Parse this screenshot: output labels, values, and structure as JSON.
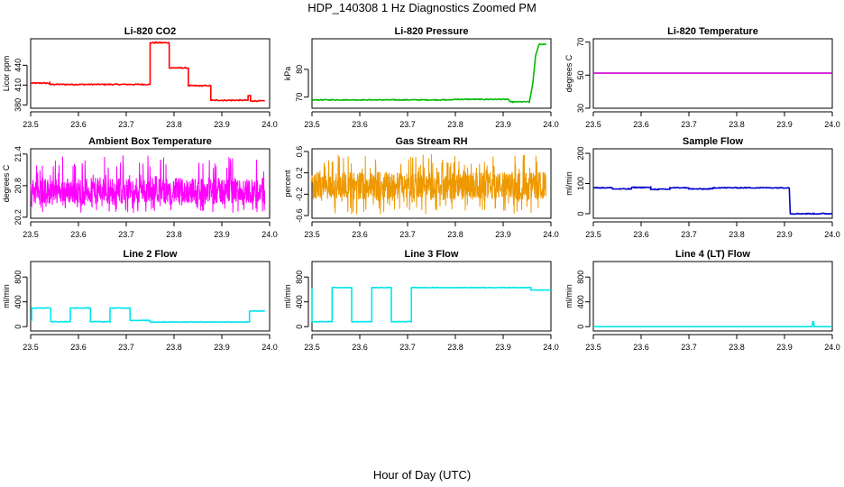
{
  "figure": {
    "title": "HDP_140308  1 Hz Diagnostics Zoomed PM",
    "xlabel": "Hour of Day (UTC)"
  },
  "chart_data": [
    {
      "type": "line",
      "title": "Li-820 CO2",
      "ylabel": "Licor ppm",
      "color": "#ff0000",
      "xlim": [
        23.5,
        24.0
      ],
      "ylim": [
        375,
        480
      ],
      "xticks": [
        23.5,
        23.6,
        23.7,
        23.8,
        23.9,
        24.0
      ],
      "xtick_labels": [
        "23.5",
        "23.6",
        "23.7",
        "23.8",
        "23.9",
        "24.0"
      ],
      "yticks": [
        380,
        410,
        440
      ],
      "ytick_labels": [
        "380",
        "410",
        "440"
      ],
      "noise": 0.8,
      "points": [
        [
          23.5,
          413
        ],
        [
          23.54,
          413
        ],
        [
          23.54,
          411
        ],
        [
          23.75,
          411
        ],
        [
          23.75,
          474
        ],
        [
          23.79,
          474
        ],
        [
          23.79,
          436
        ],
        [
          23.83,
          436
        ],
        [
          23.83,
          409
        ],
        [
          23.877,
          409
        ],
        [
          23.877,
          387
        ],
        [
          23.955,
          387
        ],
        [
          23.955,
          394
        ],
        [
          23.96,
          394
        ],
        [
          23.96,
          386
        ],
        [
          23.99,
          386
        ]
      ]
    },
    {
      "type": "line",
      "title": "Li-820 Pressure",
      "ylabel": "kPa",
      "color": "#00bb00",
      "xlim": [
        23.5,
        24.0
      ],
      "ylim": [
        66,
        91
      ],
      "xticks": [
        23.5,
        23.6,
        23.7,
        23.8,
        23.9,
        24.0
      ],
      "xtick_labels": [
        "23.5",
        "23.6",
        "23.7",
        "23.8",
        "23.9",
        "24.0"
      ],
      "yticks": [
        70,
        80
      ],
      "ytick_labels": [
        "70",
        "80"
      ],
      "noise": 0.15,
      "points": [
        [
          23.5,
          69.0
        ],
        [
          23.79,
          69.0
        ],
        [
          23.8,
          69.2
        ],
        [
          23.91,
          69.2
        ],
        [
          23.915,
          68.3
        ],
        [
          23.955,
          68.3
        ],
        [
          23.962,
          75
        ],
        [
          23.968,
          85
        ],
        [
          23.975,
          89
        ],
        [
          23.99,
          89
        ]
      ]
    },
    {
      "type": "line",
      "title": "Li-820 Temperature",
      "ylabel": "degrees C",
      "color": "#cc00cc",
      "xlim": [
        23.5,
        24.0
      ],
      "ylim": [
        30,
        72
      ],
      "xticks": [
        23.5,
        23.6,
        23.7,
        23.8,
        23.9,
        24.0
      ],
      "xtick_labels": [
        "23.5",
        "23.6",
        "23.7",
        "23.8",
        "23.9",
        "24.0"
      ],
      "yticks": [
        30,
        50,
        70
      ],
      "ytick_labels": [
        "30",
        "50",
        "70"
      ],
      "noise": 0,
      "points": [
        [
          23.5,
          51.2
        ],
        [
          24.0,
          51.2
        ]
      ]
    },
    {
      "type": "line",
      "title": "Ambient Box Temperature",
      "ylabel": "degrees C",
      "color": "#ff00ff",
      "xlim": [
        23.5,
        24.0
      ],
      "ylim": [
        20.18,
        21.5
      ],
      "xticks": [
        23.5,
        23.6,
        23.7,
        23.8,
        23.9,
        24.0
      ],
      "xtick_labels": [
        "23.5",
        "23.6",
        "23.7",
        "23.8",
        "23.9",
        "24.0"
      ],
      "yticks": [
        20.2,
        20.8,
        21.4
      ],
      "ytick_labels": [
        "20.2",
        "20.8",
        "21.4"
      ],
      "band": [
        20.45,
        20.95
      ],
      "spikes": [
        20.28,
        21.38
      ],
      "points": [
        [
          23.5,
          20.7
        ],
        [
          23.99,
          20.7
        ]
      ]
    },
    {
      "type": "line",
      "title": "Gas Stream RH",
      "ylabel": "percent",
      "color": "#ee9900",
      "xlim": [
        23.5,
        24.0
      ],
      "ylim": [
        -0.65,
        0.65
      ],
      "xticks": [
        23.5,
        23.6,
        23.7,
        23.8,
        23.9,
        24.0
      ],
      "xtick_labels": [
        "23.5",
        "23.6",
        "23.7",
        "23.8",
        "23.9",
        "24.0"
      ],
      "yticks": [
        -0.6,
        -0.2,
        0.2,
        0.6
      ],
      "ytick_labels": [
        "-0.6",
        "-0.2",
        "0.2",
        "0.6"
      ],
      "band": [
        -0.3,
        0.22
      ],
      "spikes": [
        -0.58,
        0.55
      ],
      "points": [
        [
          23.5,
          0.0
        ],
        [
          23.99,
          0.0
        ]
      ]
    },
    {
      "type": "line",
      "title": "Sample Flow",
      "ylabel": "ml/min",
      "color": "#0000cc",
      "xlim": [
        23.5,
        24.0
      ],
      "ylim": [
        -15,
        215
      ],
      "xticks": [
        23.5,
        23.6,
        23.7,
        23.8,
        23.9,
        24.0
      ],
      "xtick_labels": [
        "23.5",
        "23.6",
        "23.7",
        "23.8",
        "23.9",
        "24.0"
      ],
      "yticks": [
        0,
        100,
        200
      ],
      "ytick_labels": [
        "0",
        "100",
        "200"
      ],
      "noise": 1.5,
      "points": [
        [
          23.5,
          86
        ],
        [
          23.54,
          86
        ],
        [
          23.54,
          82
        ],
        [
          23.58,
          82
        ],
        [
          23.58,
          87
        ],
        [
          23.62,
          87
        ],
        [
          23.62,
          81
        ],
        [
          23.66,
          81
        ],
        [
          23.66,
          86
        ],
        [
          23.7,
          86
        ],
        [
          23.7,
          82
        ],
        [
          23.75,
          82
        ],
        [
          23.75,
          86
        ],
        [
          23.91,
          86
        ],
        [
          23.912,
          0
        ],
        [
          24.0,
          0
        ]
      ]
    },
    {
      "type": "line",
      "title": "Line 2 Flow",
      "ylabel": "ml/min",
      "color": "#00e5ee",
      "xlim": [
        23.5,
        24.0
      ],
      "ylim": [
        -70,
        1050
      ],
      "xticks": [
        23.5,
        23.6,
        23.7,
        23.8,
        23.9,
        24.0
      ],
      "xtick_labels": [
        "23.5",
        "23.6",
        "23.7",
        "23.8",
        "23.9",
        "24.0"
      ],
      "yticks": [
        0,
        400,
        800
      ],
      "ytick_labels": [
        "0",
        "400",
        "800"
      ],
      "noise": 5,
      "points": [
        [
          23.5,
          100
        ],
        [
          23.502,
          100
        ],
        [
          23.502,
          300
        ],
        [
          23.542,
          300
        ],
        [
          23.542,
          80
        ],
        [
          23.583,
          80
        ],
        [
          23.583,
          300
        ],
        [
          23.625,
          300
        ],
        [
          23.625,
          80
        ],
        [
          23.666,
          80
        ],
        [
          23.666,
          300
        ],
        [
          23.708,
          300
        ],
        [
          23.708,
          100
        ],
        [
          23.75,
          100
        ],
        [
          23.75,
          75
        ],
        [
          23.958,
          75
        ],
        [
          23.958,
          250
        ],
        [
          23.99,
          250
        ]
      ]
    },
    {
      "type": "line",
      "title": "Line 3 Flow",
      "ylabel": "ml/min",
      "color": "#00e5ee",
      "xlim": [
        23.5,
        24.0
      ],
      "ylim": [
        -70,
        1050
      ],
      "xticks": [
        23.5,
        23.6,
        23.7,
        23.8,
        23.9,
        24.0
      ],
      "xtick_labels": [
        "23.5",
        "23.6",
        "23.7",
        "23.8",
        "23.9",
        "24.0"
      ],
      "yticks": [
        0,
        400,
        800
      ],
      "ytick_labels": [
        "0",
        "400",
        "800"
      ],
      "noise": 4,
      "points": [
        [
          23.5,
          620
        ],
        [
          23.5,
          80
        ],
        [
          23.542,
          80
        ],
        [
          23.542,
          630
        ],
        [
          23.583,
          630
        ],
        [
          23.583,
          80
        ],
        [
          23.625,
          80
        ],
        [
          23.625,
          630
        ],
        [
          23.666,
          630
        ],
        [
          23.666,
          80
        ],
        [
          23.708,
          80
        ],
        [
          23.708,
          630
        ],
        [
          23.958,
          630
        ],
        [
          23.958,
          590
        ],
        [
          24.0,
          590
        ]
      ]
    },
    {
      "type": "line",
      "title": "Line 4 (LT) Flow",
      "ylabel": "ml/min",
      "color": "#00e5ee",
      "xlim": [
        23.5,
        24.0
      ],
      "ylim": [
        -70,
        1050
      ],
      "xticks": [
        23.5,
        23.6,
        23.7,
        23.8,
        23.9,
        24.0
      ],
      "xtick_labels": [
        "23.5",
        "23.6",
        "23.7",
        "23.8",
        "23.9",
        "24.0"
      ],
      "yticks": [
        0,
        400,
        800
      ],
      "ytick_labels": [
        "0",
        "400",
        "800"
      ],
      "noise": 0,
      "points": [
        [
          23.5,
          0
        ],
        [
          23.958,
          0
        ],
        [
          23.959,
          80
        ],
        [
          23.961,
          80
        ],
        [
          23.962,
          0
        ],
        [
          24.0,
          0
        ]
      ]
    }
  ]
}
